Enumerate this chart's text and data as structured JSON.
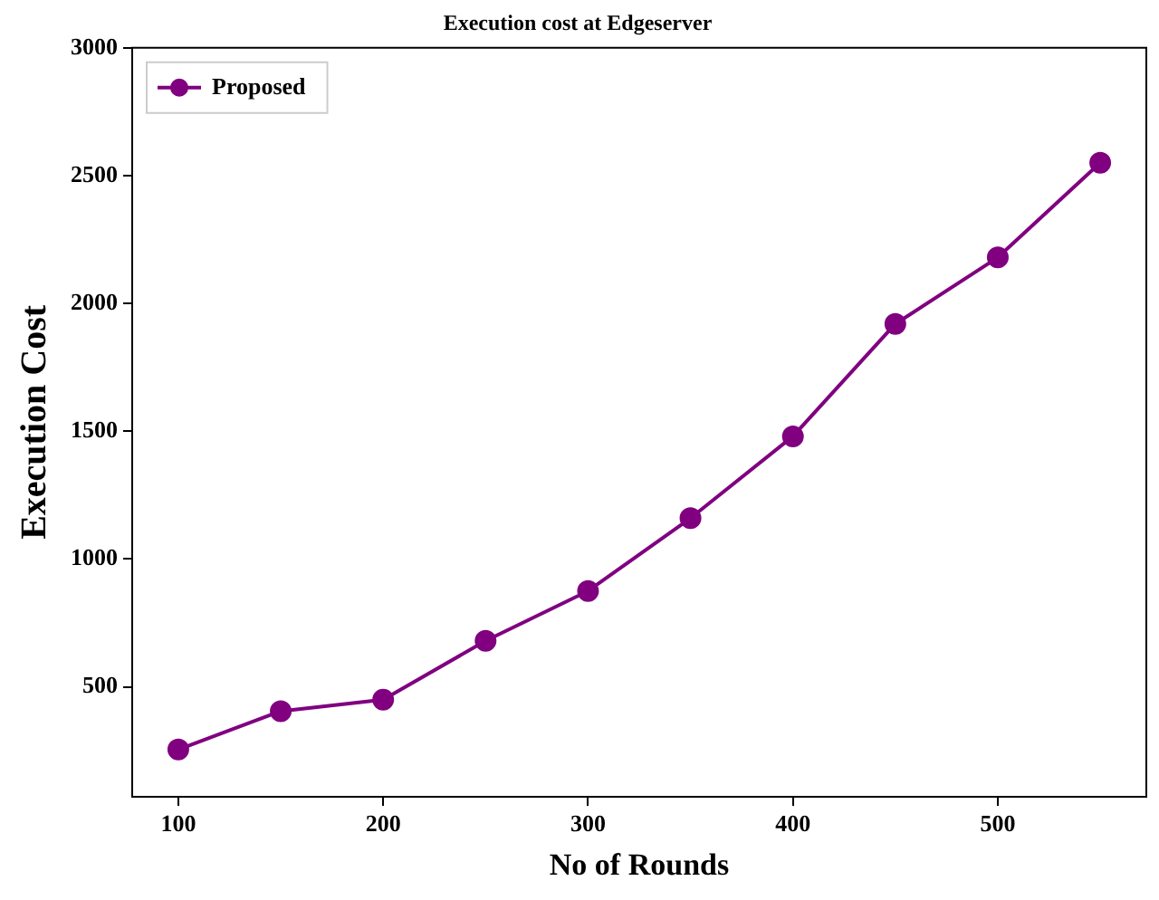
{
  "chart_data": {
    "type": "line",
    "title": "Execution cost at Edgeserver",
    "xlabel": "No of Rounds",
    "ylabel": "Execution Cost",
    "x": [
      100,
      150,
      200,
      250,
      300,
      350,
      400,
      450,
      500,
      550
    ],
    "series": [
      {
        "name": "Proposed",
        "color": "#800080",
        "values": [
          255,
          405,
          450,
          680,
          875,
          1160,
          1480,
          1920,
          2180,
          2550
        ]
      }
    ],
    "xlim": [
      77.5,
      572.5
    ],
    "xticks": [
      100,
      200,
      300,
      400,
      500
    ],
    "ylim": [
      70,
      3000
    ],
    "yticks": [
      500,
      1000,
      1500,
      2000,
      2500,
      3000
    ],
    "grid": false,
    "legend": "top left",
    "marker": "circle",
    "line_style": "solid"
  }
}
